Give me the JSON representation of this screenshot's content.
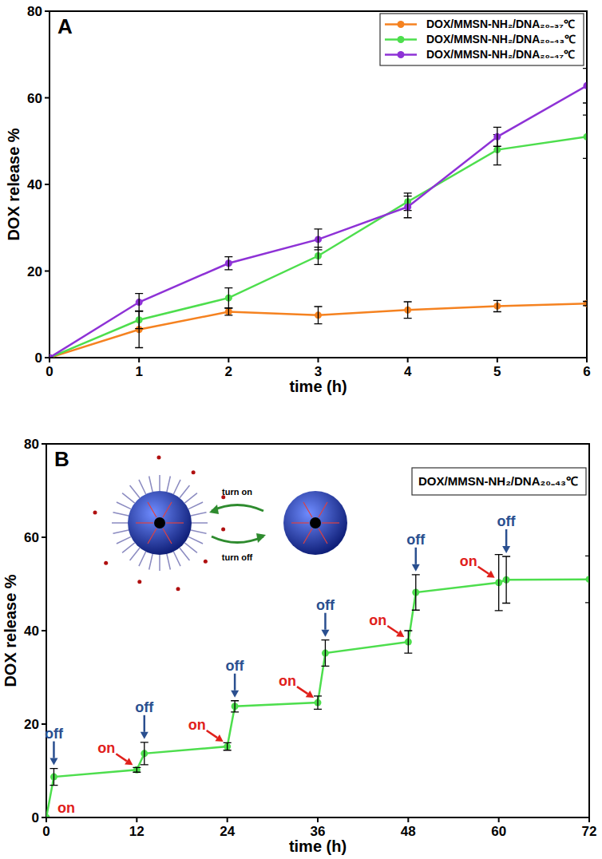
{
  "chart_data": [
    {
      "type": "line",
      "panel_label": "A",
      "x_label": "time (h)",
      "y_label": "DOX release %",
      "x": [
        0,
        1,
        2,
        3,
        4,
        5,
        6
      ],
      "series": [
        {
          "name": "DOX/MMSN-NH₂/DNA₂₀₋₃₇℃",
          "color": "#f58220",
          "marker": "circle",
          "values": [
            0,
            6.5,
            10.6,
            9.8,
            11,
            11.9,
            12.5
          ],
          "errors": [
            0,
            4.2,
            0.8,
            2,
            1.9,
            1.3,
            0.5
          ]
        },
        {
          "name": "DOX/MMSN-NH₂/DNA₂₀₋₄₃℃",
          "color": "#4dde4d",
          "marker": "circle",
          "values": [
            0,
            8.7,
            13.8,
            23.5,
            36,
            48,
            51
          ],
          "errors": [
            0,
            2,
            2.3,
            2,
            2,
            3.5,
            5
          ]
        },
        {
          "name": "DOX/MMSN-NH₂/DNA₂₀₋₄₇℃",
          "color": "#8e32d6",
          "marker": "circle",
          "values": [
            0,
            12.8,
            21.8,
            27.3,
            34.8,
            51,
            62.8
          ],
          "errors": [
            0,
            2,
            1.5,
            2.4,
            2.5,
            2.2,
            4
          ]
        }
      ],
      "xlim": [
        0,
        6
      ],
      "xticks": [
        0,
        1,
        2,
        3,
        4,
        5,
        6
      ],
      "ylim": [
        0,
        80
      ],
      "yticks": [
        0,
        20,
        40,
        60,
        80
      ],
      "grid": false,
      "legend": "top-right"
    },
    {
      "type": "line",
      "panel_label": "B",
      "x_label": "time (h)",
      "y_label": "DOX release %",
      "x": [
        0,
        1,
        12,
        13,
        24,
        25,
        36,
        37,
        48,
        49,
        60,
        61,
        72
      ],
      "series": [
        {
          "name": "DOX/MMSN-NH₂/DNA₂₀₋₄₃℃",
          "color": "#4dde4d",
          "marker": "circle",
          "values": [
            0,
            8.7,
            10.2,
            13.7,
            15.2,
            23.8,
            24.6,
            35.2,
            37.6,
            48.2,
            50.3,
            50.9,
            51
          ],
          "errors": [
            0,
            1.8,
            0.5,
            2.4,
            0.8,
            1.2,
            1.4,
            2.8,
            2.4,
            3.8,
            6,
            5,
            5
          ]
        }
      ],
      "annotations": [
        {
          "text": "on",
          "x": 0,
          "color": "#e0201b",
          "marker": "none"
        },
        {
          "text": "off",
          "x": 1,
          "color": "#2a4f8f",
          "marker": "down-arrow"
        },
        {
          "text": "on",
          "x": 12,
          "color": "#e0201b",
          "marker": "diagonal-arrow"
        },
        {
          "text": "off",
          "x": 13,
          "color": "#2a4f8f",
          "marker": "down-arrow"
        },
        {
          "text": "on",
          "x": 24,
          "color": "#e0201b",
          "marker": "diagonal-arrow"
        },
        {
          "text": "off",
          "x": 25,
          "color": "#2a4f8f",
          "marker": "down-arrow"
        },
        {
          "text": "on",
          "x": 36,
          "color": "#e0201b",
          "marker": "diagonal-arrow"
        },
        {
          "text": "off",
          "x": 37,
          "color": "#2a4f8f",
          "marker": "down-arrow"
        },
        {
          "text": "on",
          "x": 48,
          "color": "#e0201b",
          "marker": "diagonal-arrow"
        },
        {
          "text": "off",
          "x": 49,
          "color": "#2a4f8f",
          "marker": "down-arrow"
        },
        {
          "text": "on",
          "x": 60,
          "color": "#e0201b",
          "marker": "diagonal-arrow"
        },
        {
          "text": "off",
          "x": 61,
          "color": "#2a4f8f",
          "marker": "down-arrow"
        },
        {
          "text": "turn on"
        },
        {
          "text": "turn off"
        }
      ],
      "xlim": [
        0,
        72
      ],
      "xticks": [
        0,
        12,
        24,
        36,
        48,
        60,
        72
      ],
      "ylim": [
        0,
        80
      ],
      "yticks": [
        0,
        20,
        40,
        60,
        80
      ],
      "grid": false,
      "legend": "top-right"
    }
  ]
}
